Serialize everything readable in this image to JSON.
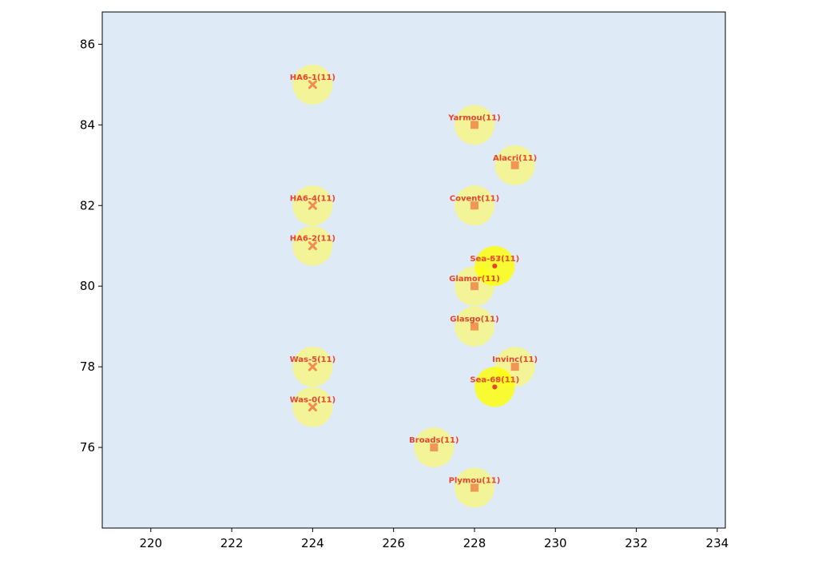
{
  "chart_data": {
    "type": "scatter",
    "xlim": [
      218.8,
      234.2
    ],
    "ylim": [
      74.0,
      86.8
    ],
    "x_ticks": [
      "220",
      "222",
      "224",
      "226",
      "228",
      "230",
      "232",
      "234"
    ],
    "y_ticks": [
      "76",
      "78",
      "80",
      "82",
      "84",
      "86"
    ],
    "grid": false,
    "colors": {
      "background": "#deebf7",
      "circle_light": "#f7f57f",
      "circle_bright": "#ffff00",
      "marker": "#f28c4f",
      "label": "#e8432e"
    },
    "points": [
      {
        "label": "HA6-1(11)",
        "x": 224,
        "y": 85,
        "marker": "x",
        "highlight": false
      },
      {
        "label": "HA6-4(11)",
        "x": 224,
        "y": 82,
        "marker": "x",
        "highlight": false
      },
      {
        "label": "HA6-2(11)",
        "x": 224,
        "y": 81,
        "marker": "x",
        "highlight": false
      },
      {
        "label": "Was-5(11)",
        "x": 224,
        "y": 78,
        "marker": "x",
        "highlight": false
      },
      {
        "label": "Was-0(11)",
        "x": 224,
        "y": 77,
        "marker": "x",
        "highlight": false
      },
      {
        "label": "Yarmou(11)",
        "x": 228,
        "y": 84,
        "marker": "square",
        "highlight": false
      },
      {
        "label": "Alacri(11)",
        "x": 229,
        "y": 83,
        "marker": "square",
        "highlight": false
      },
      {
        "label": "Covent(11)",
        "x": 228,
        "y": 82,
        "marker": "square",
        "highlight": false
      },
      {
        "label": "Glamor(11)",
        "x": 228,
        "y": 80,
        "marker": "square",
        "highlight": false
      },
      {
        "label": "Glasgo(11)",
        "x": 228,
        "y": 79,
        "marker": "square",
        "highlight": false
      },
      {
        "label": "Invinc(11)",
        "x": 229,
        "y": 78,
        "marker": "square",
        "highlight": false
      },
      {
        "label": "Broads(11)",
        "x": 227,
        "y": 76,
        "marker": "square",
        "highlight": false
      },
      {
        "label": "Plymou(11)",
        "x": 228,
        "y": 75,
        "marker": "square",
        "highlight": false
      },
      {
        "label": "Sea-57(11)",
        "x": 228.5,
        "y": 80.5,
        "marker": "dot",
        "highlight": true
      },
      {
        "label": "Sea-63(11)",
        "x": 228.5,
        "y": 80.5,
        "marker": "dot",
        "highlight": true
      },
      {
        "label": "Sea-68(11)",
        "x": 228.5,
        "y": 77.5,
        "marker": "dot",
        "highlight": true
      },
      {
        "label": "Sea-69(11)",
        "x": 228.5,
        "y": 77.5,
        "marker": "dot",
        "highlight": true
      }
    ]
  }
}
